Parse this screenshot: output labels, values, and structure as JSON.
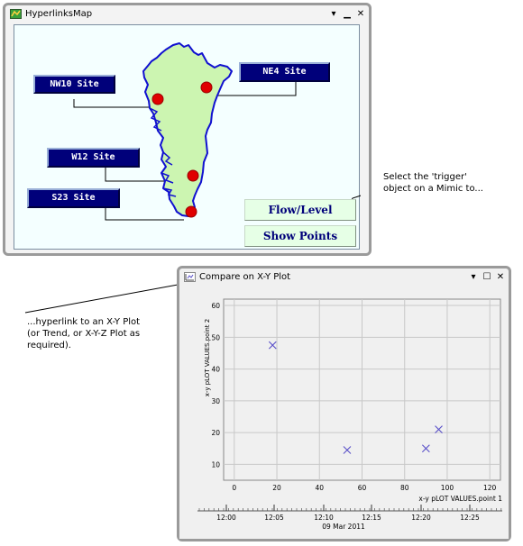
{
  "map_window": {
    "title": "HyperlinksMap",
    "controls": {
      "dropdown": "▾",
      "minimize": "▁",
      "close": "✕"
    },
    "sites": [
      "NW10 Site",
      "NE4 Site",
      "W12 Site",
      "S23 Site"
    ],
    "buttons": {
      "flow_level": "Flow/Level",
      "show_points": "Show Points"
    },
    "colors": {
      "land": "#ccf5b1",
      "border": "#1010d0",
      "marker": "#e00000",
      "label_bg": "#00007a"
    }
  },
  "annotations": {
    "select_trigger": [
      "Select the 'trigger'",
      "object on a Mimic to..."
    ],
    "hyperlink": [
      "...hyperlink to an X-Y Plot",
      "(or Trend, or X-Y-Z Plot as",
      "required)."
    ]
  },
  "plot_window": {
    "title": "Compare on X-Y Plot",
    "controls": {
      "dropdown": "▾",
      "maximize": "☐",
      "close": "✕"
    }
  },
  "chart_data": {
    "type": "scatter",
    "xlabel": "x-y pLOT VALUES.point 1",
    "ylabel": "x-y pLOT VALUES.point 2",
    "xlim": [
      -5,
      125
    ],
    "ylim": [
      5,
      62
    ],
    "xticks": [
      0,
      20,
      40,
      60,
      80,
      100,
      120
    ],
    "yticks": [
      10,
      20,
      30,
      40,
      50,
      60
    ],
    "points": [
      {
        "x": 18,
        "y": 47.5
      },
      {
        "x": 53,
        "y": 14.5
      },
      {
        "x": 90,
        "y": 15
      },
      {
        "x": 96,
        "y": 21
      }
    ],
    "time_axis": {
      "ticks": [
        "12:00",
        "12:05",
        "12:10",
        "12:15",
        "12:20",
        "12:25"
      ],
      "date": "09 Mar 2011"
    },
    "marker": "x",
    "marker_color": "#5a50c8",
    "grid": true
  }
}
